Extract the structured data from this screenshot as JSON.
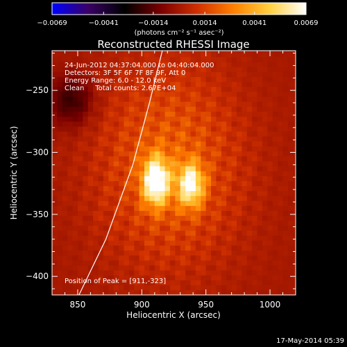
{
  "chart_data": {
    "type": "heatmap",
    "title": "Reconstructed RHESSI Image",
    "xlabel": "Heliocentric X (arcsec)",
    "ylabel": "Heliocentric Y (arcsec)",
    "xlim": [
      830,
      1020
    ],
    "ylim": [
      -415,
      -218
    ],
    "x_ticks": [
      850,
      900,
      950,
      1000
    ],
    "y_ticks": [
      -250,
      -300,
      -350,
      -400
    ],
    "x_tick_labels": [
      "850",
      "900",
      "950",
      "1000"
    ],
    "y_tick_labels": [
      "−250",
      "−300",
      "−350",
      "−400"
    ],
    "colorbar": {
      "min": -0.0069,
      "max": 0.0069,
      "tick_values": [
        -0.0069,
        -0.0041,
        -0.0014,
        0.0014,
        0.0041,
        0.0069
      ],
      "tick_labels": [
        "−0.0069",
        "−0.0041",
        "−0.0014",
        "0.0014",
        "0.0041",
        "0.0069"
      ],
      "units": "(photons cm⁻² s⁻¹ asec⁻²)",
      "colormap": [
        "#0000ff",
        "#3a0066",
        "#000000",
        "#7a0000",
        "#d03000",
        "#ff8000",
        "#ffd040",
        "#ffffff"
      ]
    },
    "annotations": {
      "line1": "24-Jun-2012 04:37:04.000 to 04:40:04.000",
      "line2": "Detectors: 3F 5F 6F 7F 8F 9F, Att 0",
      "line3": "Energy Range: 6.0 - 12.0 keV",
      "line4": "Clean     Total counts: 2.67E+04",
      "peak": "Position of Peak = [911,-323]"
    },
    "sources": [
      {
        "x": 911,
        "y": -323,
        "peak": 0.0069,
        "sx": 7,
        "sy": 13
      },
      {
        "x": 938,
        "y": -326,
        "peak": 0.0056,
        "sx": 7,
        "sy": 12
      }
    ],
    "background": {
      "x": 922,
      "y": -310,
      "peak": 0.0022,
      "sx": 38,
      "sy": 55
    },
    "negative_patch": {
      "x": 845,
      "y": -258,
      "peak": -0.0022,
      "sx": 12,
      "sy": 14
    },
    "limb_arc": [
      [
        851,
        -415
      ],
      [
        872,
        -370
      ],
      [
        893,
        -310
      ],
      [
        906,
        -260
      ],
      [
        916,
        -218
      ]
    ],
    "limb_color": "#ffffff"
  },
  "footer_date": "17-May-2014 05:39"
}
